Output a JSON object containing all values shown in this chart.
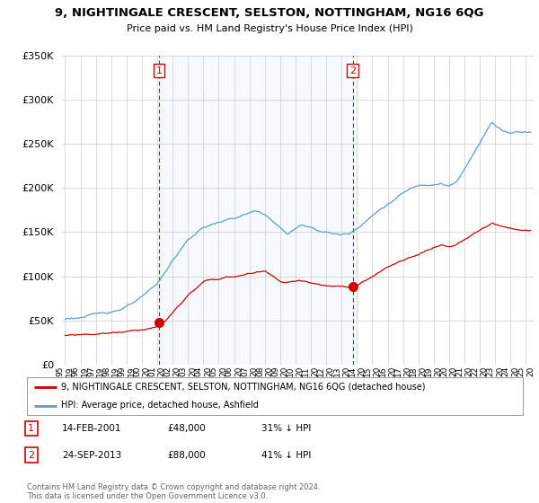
{
  "title": "9, NIGHTINGALE CRESCENT, SELSTON, NOTTINGHAM, NG16 6QG",
  "subtitle": "Price paid vs. HM Land Registry's House Price Index (HPI)",
  "legend_line1": "9, NIGHTINGALE CRESCENT, SELSTON, NOTTINGHAM, NG16 6QG (detached house)",
  "legend_line2": "HPI: Average price, detached house, Ashfield",
  "footnote": "Contains HM Land Registry data © Crown copyright and database right 2024.\nThis data is licensed under the Open Government Licence v3.0.",
  "sale1_label": "1",
  "sale1_date": "14-FEB-2001",
  "sale1_price": "£48,000",
  "sale1_hpi": "31% ↓ HPI",
  "sale1_year": 2001.12,
  "sale1_value": 48000,
  "sale2_label": "2",
  "sale2_date": "24-SEP-2013",
  "sale2_price": "£88,000",
  "sale2_hpi": "41% ↓ HPI",
  "sale2_year": 2013.73,
  "sale2_value": 88000,
  "ylim": [
    0,
    350000
  ],
  "xlim_start": 1994.8,
  "xlim_end": 2025.5,
  "red_color": "#cc0000",
  "blue_color": "#6699cc",
  "shade_color": "#ddeeff",
  "background_color": "#ffffff",
  "grid_color": "#cccccc"
}
